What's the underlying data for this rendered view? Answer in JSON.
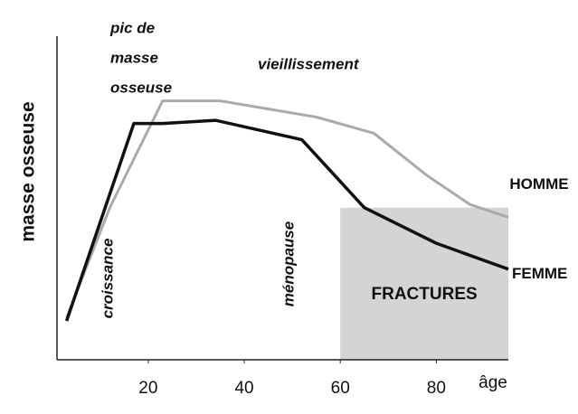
{
  "chart_data": {
    "type": "line",
    "y_label": "masse osseuse",
    "x_label": "âge",
    "xlim": [
      1,
      95
    ],
    "xticks": [
      20,
      40,
      60,
      80
    ],
    "ylim": [
      0,
      100
    ],
    "series": [
      {
        "name": "HOMME",
        "color": "#aaaaaa",
        "x": [
          3,
          12,
          23,
          35,
          55,
          67,
          78,
          87,
          95
        ],
        "values": [
          13,
          47,
          80,
          80,
          75,
          70,
          57,
          48,
          44
        ]
      },
      {
        "name": "FEMME",
        "color": "#111111",
        "x": [
          3,
          17,
          23,
          34,
          52,
          65,
          80,
          95
        ],
        "values": [
          12,
          73,
          73,
          74,
          68,
          47,
          36,
          28
        ]
      }
    ],
    "fracture_zone": {
      "label": "FRACTURES",
      "x": [
        60,
        95
      ],
      "y": [
        0,
        47
      ],
      "color": "#d4d4d4"
    },
    "annotations": {
      "peak": [
        "pic de",
        "masse",
        "osseuse"
      ],
      "aging": "vieillissement",
      "growth": "croissance",
      "menopause": "ménopause"
    }
  }
}
